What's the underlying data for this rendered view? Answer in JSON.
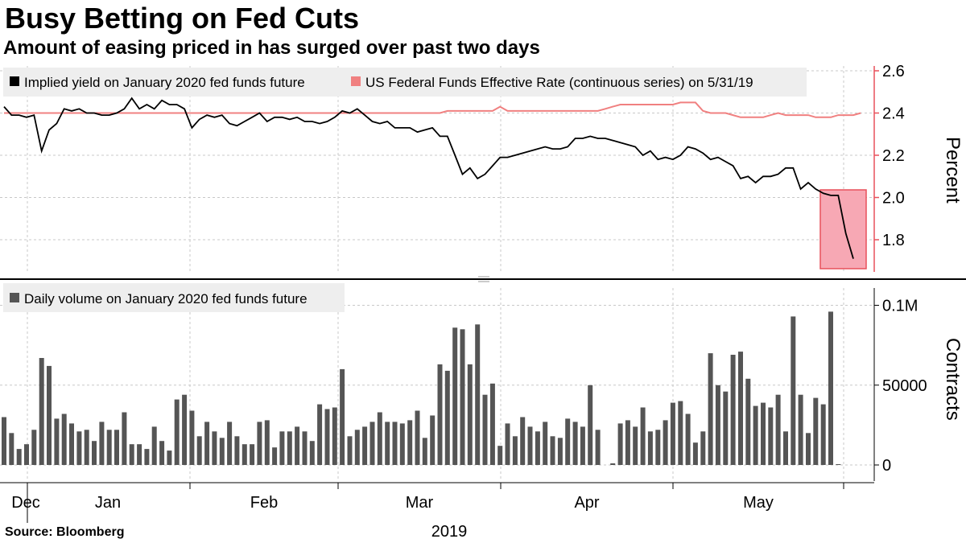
{
  "title": "Busy Betting on Fed Cuts",
  "subtitle": "Amount of easing priced in has surged over past two days",
  "source": "Source:  Bloomberg",
  "colors": {
    "implied": "#000000",
    "effr": "#f08080",
    "volume": "#555555",
    "highlight": "#f7a8b4",
    "axis": "#e8505b"
  },
  "chart_data": [
    {
      "type": "line",
      "panel": "top",
      "ylabel": "Percent",
      "ylim": [
        1.65,
        2.65
      ],
      "yticks": [
        "1.8",
        "2.0",
        "2.2",
        "2.4",
        "2.6"
      ],
      "ytick_values": [
        1.8,
        2.0,
        2.2,
        2.4,
        2.6
      ],
      "legend_position": "top-left",
      "series": [
        {
          "name": "Implied yield on January 2020 fed funds future",
          "values": [
            2.43,
            2.39,
            2.39,
            2.38,
            2.39,
            2.22,
            2.32,
            2.35,
            2.42,
            2.41,
            2.42,
            2.4,
            2.4,
            2.39,
            2.39,
            2.4,
            2.42,
            2.47,
            2.42,
            2.44,
            2.42,
            2.46,
            2.44,
            2.44,
            2.42,
            2.33,
            2.37,
            2.39,
            2.38,
            2.39,
            2.35,
            2.34,
            2.36,
            2.38,
            2.4,
            2.36,
            2.38,
            2.38,
            2.37,
            2.38,
            2.36,
            2.36,
            2.35,
            2.36,
            2.38,
            2.41,
            2.4,
            2.42,
            2.39,
            2.36,
            2.35,
            2.36,
            2.33,
            2.33,
            2.33,
            2.31,
            2.32,
            2.33,
            2.29,
            2.29,
            2.2,
            2.11,
            2.14,
            2.09,
            2.11,
            2.15,
            2.19,
            2.19,
            2.2,
            2.21,
            2.22,
            2.23,
            2.24,
            2.23,
            2.23,
            2.24,
            2.28,
            2.28,
            2.29,
            2.28,
            2.28,
            2.27,
            2.26,
            2.25,
            2.24,
            2.2,
            2.22,
            2.18,
            2.19,
            2.18,
            2.2,
            2.24,
            2.23,
            2.21,
            2.18,
            2.19,
            2.17,
            2.15,
            2.09,
            2.1,
            2.07,
            2.1,
            2.1,
            2.11,
            2.14,
            2.14,
            2.04,
            2.07,
            2.04,
            2.02,
            2.01,
            2.01,
            1.83,
            1.71
          ]
        },
        {
          "name": "US Federal Funds Effective Rate (continuous series)  on 5/31/19",
          "values": [
            2.4,
            2.4,
            2.4,
            2.4,
            2.4,
            2.4,
            2.4,
            2.4,
            2.4,
            2.4,
            2.4,
            2.4,
            2.4,
            2.4,
            2.4,
            2.4,
            2.4,
            2.4,
            2.4,
            2.4,
            2.4,
            2.4,
            2.4,
            2.4,
            2.4,
            2.4,
            2.4,
            2.4,
            2.4,
            2.4,
            2.4,
            2.4,
            2.4,
            2.4,
            2.4,
            2.4,
            2.4,
            2.4,
            2.4,
            2.4,
            2.4,
            2.4,
            2.4,
            2.4,
            2.4,
            2.4,
            2.4,
            2.4,
            2.4,
            2.4,
            2.4,
            2.4,
            2.4,
            2.4,
            2.4,
            2.4,
            2.4,
            2.4,
            2.4,
            2.41,
            2.41,
            2.41,
            2.41,
            2.41,
            2.41,
            2.41,
            2.43,
            2.41,
            2.41,
            2.41,
            2.41,
            2.41,
            2.41,
            2.41,
            2.41,
            2.41,
            2.41,
            2.41,
            2.41,
            2.41,
            2.42,
            2.43,
            2.44,
            2.44,
            2.44,
            2.44,
            2.44,
            2.44,
            2.44,
            2.44,
            2.45,
            2.45,
            2.45,
            2.41,
            2.4,
            2.4,
            2.4,
            2.39,
            2.38,
            2.38,
            2.38,
            2.38,
            2.39,
            2.4,
            2.39,
            2.39,
            2.39,
            2.39,
            2.38,
            2.38,
            2.38,
            2.39,
            2.39,
            2.39,
            2.4
          ]
        }
      ]
    },
    {
      "type": "bar",
      "panel": "bottom",
      "ylabel": "Contracts",
      "ylim": [
        0,
        110000
      ],
      "yticks": [
        "0",
        "50000",
        "0.1M"
      ],
      "ytick_values": [
        0,
        50000,
        100000
      ],
      "legend_position": "top-left",
      "series": [
        {
          "name": "Daily volume on January 2020 fed funds future",
          "values": [
            30000,
            20000,
            10000,
            13000,
            22000,
            67000,
            62000,
            29000,
            32000,
            26000,
            21000,
            22000,
            15000,
            27000,
            22000,
            22000,
            33000,
            13000,
            13000,
            10000,
            24000,
            15000,
            9000,
            41000,
            44000,
            34000,
            18000,
            27000,
            21000,
            17000,
            27000,
            18000,
            13000,
            13000,
            27000,
            28000,
            11000,
            21000,
            21000,
            24000,
            21000,
            15000,
            38000,
            35000,
            36000,
            60000,
            18000,
            22000,
            24000,
            27000,
            33000,
            27000,
            27000,
            26000,
            28000,
            34000,
            17000,
            31000,
            63000,
            59000,
            86000,
            85000,
            63000,
            88000,
            44000,
            51000,
            12000,
            26000,
            18000,
            30000,
            24000,
            21000,
            27000,
            18000,
            17000,
            29000,
            27000,
            24000,
            50000,
            22000,
            0,
            1000,
            26000,
            28000,
            24000,
            36000,
            21000,
            22000,
            28000,
            39000,
            40000,
            32000,
            14000,
            21000,
            70000,
            50000,
            46000,
            69000,
            71000,
            54000,
            37000,
            39000,
            36000,
            44000,
            21000,
            93000,
            44000,
            20000,
            42000,
            38000,
            96000,
            500
          ]
        }
      ]
    }
  ],
  "xaxis": {
    "month_labels": [
      "Dec",
      "Jan",
      "Feb",
      "Mar",
      "Apr",
      "May"
    ],
    "year_label": "2019"
  },
  "legend": {
    "implied": "Implied yield on January 2020 fed funds future",
    "effr": "US Federal Funds Effective Rate (continuous series)  on 5/31/19",
    "volume": "Daily volume on January 2020 fed funds future"
  }
}
